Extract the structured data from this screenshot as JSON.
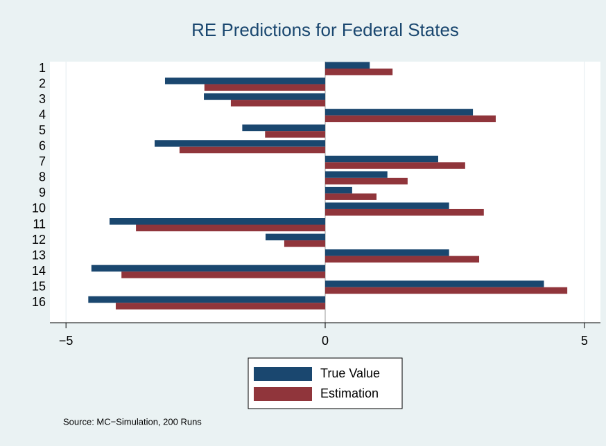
{
  "chart_data": {
    "type": "bar",
    "orientation": "horizontal",
    "title": "RE Predictions for Federal States",
    "note": "Source: MC−Simulation, 200 Runs",
    "categories": [
      "1",
      "2",
      "3",
      "4",
      "5",
      "6",
      "7",
      "8",
      "9",
      "10",
      "11",
      "12",
      "13",
      "14",
      "15",
      "16"
    ],
    "series": [
      {
        "name": "True Value",
        "color": "#1a476f",
        "values": [
          0.86,
          -3.09,
          -2.34,
          2.85,
          -1.6,
          -3.29,
          2.18,
          1.2,
          0.52,
          2.39,
          -4.16,
          -1.15,
          2.39,
          -4.51,
          4.22,
          -4.57
        ]
      },
      {
        "name": "Estimation",
        "color": "#90353b",
        "values": [
          1.3,
          -2.33,
          -1.82,
          3.29,
          -1.16,
          -2.81,
          2.7,
          1.59,
          0.99,
          3.06,
          -3.65,
          -0.79,
          2.97,
          -3.93,
          4.67,
          -4.04
        ]
      }
    ],
    "xlim": [
      -5.31,
      5.31
    ],
    "xticks": [
      {
        "value": -5,
        "label": "−5"
      },
      0,
      5
    ],
    "grid": true
  }
}
